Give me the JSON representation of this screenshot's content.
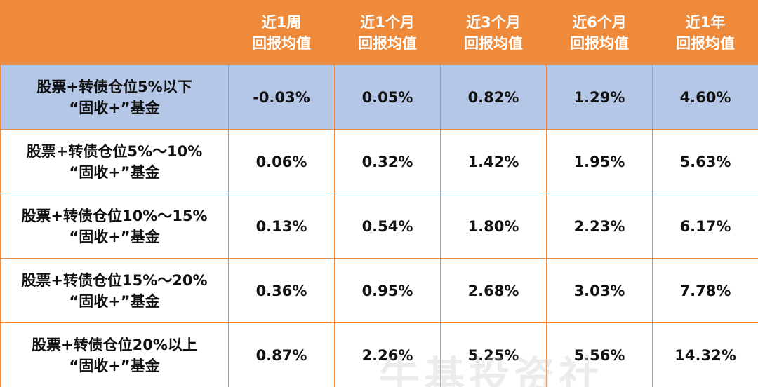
{
  "table": {
    "header": [
      [
        "近1周",
        "回报均值"
      ],
      [
        "近1个月",
        "回报均值"
      ],
      [
        "近3个月",
        "回报均值"
      ],
      [
        "近6个月",
        "回报均值"
      ],
      [
        "近1年",
        "回报均值"
      ]
    ],
    "rows": [
      {
        "label": [
          "股票+转债仓位5%以下",
          "“固收+”基金"
        ],
        "cells": [
          "-0.03%",
          "0.05%",
          "0.82%",
          "1.29%",
          "4.60%"
        ]
      },
      {
        "label": [
          "股票+转债仓位5%～10%",
          "“固收+”基金"
        ],
        "cells": [
          "0.06%",
          "0.32%",
          "1.42%",
          "1.95%",
          "5.63%"
        ]
      },
      {
        "label": [
          "股票+转债仓位10%～15%",
          "“固收+”基金"
        ],
        "cells": [
          "0.13%",
          "0.54%",
          "1.80%",
          "2.23%",
          "6.17%"
        ]
      },
      {
        "label": [
          "股票+转债仓位15%～20%",
          "“固收+”基金"
        ],
        "cells": [
          "0.36%",
          "0.95%",
          "2.68%",
          "3.03%",
          "7.78%"
        ]
      },
      {
        "label": [
          "股票+转债仓位20%以上",
          "“固收+”基金"
        ],
        "cells": [
          "0.87%",
          "2.26%",
          "5.25%",
          "5.56%",
          "14.32%"
        ]
      }
    ]
  },
  "watermark": "牛基投资社"
}
